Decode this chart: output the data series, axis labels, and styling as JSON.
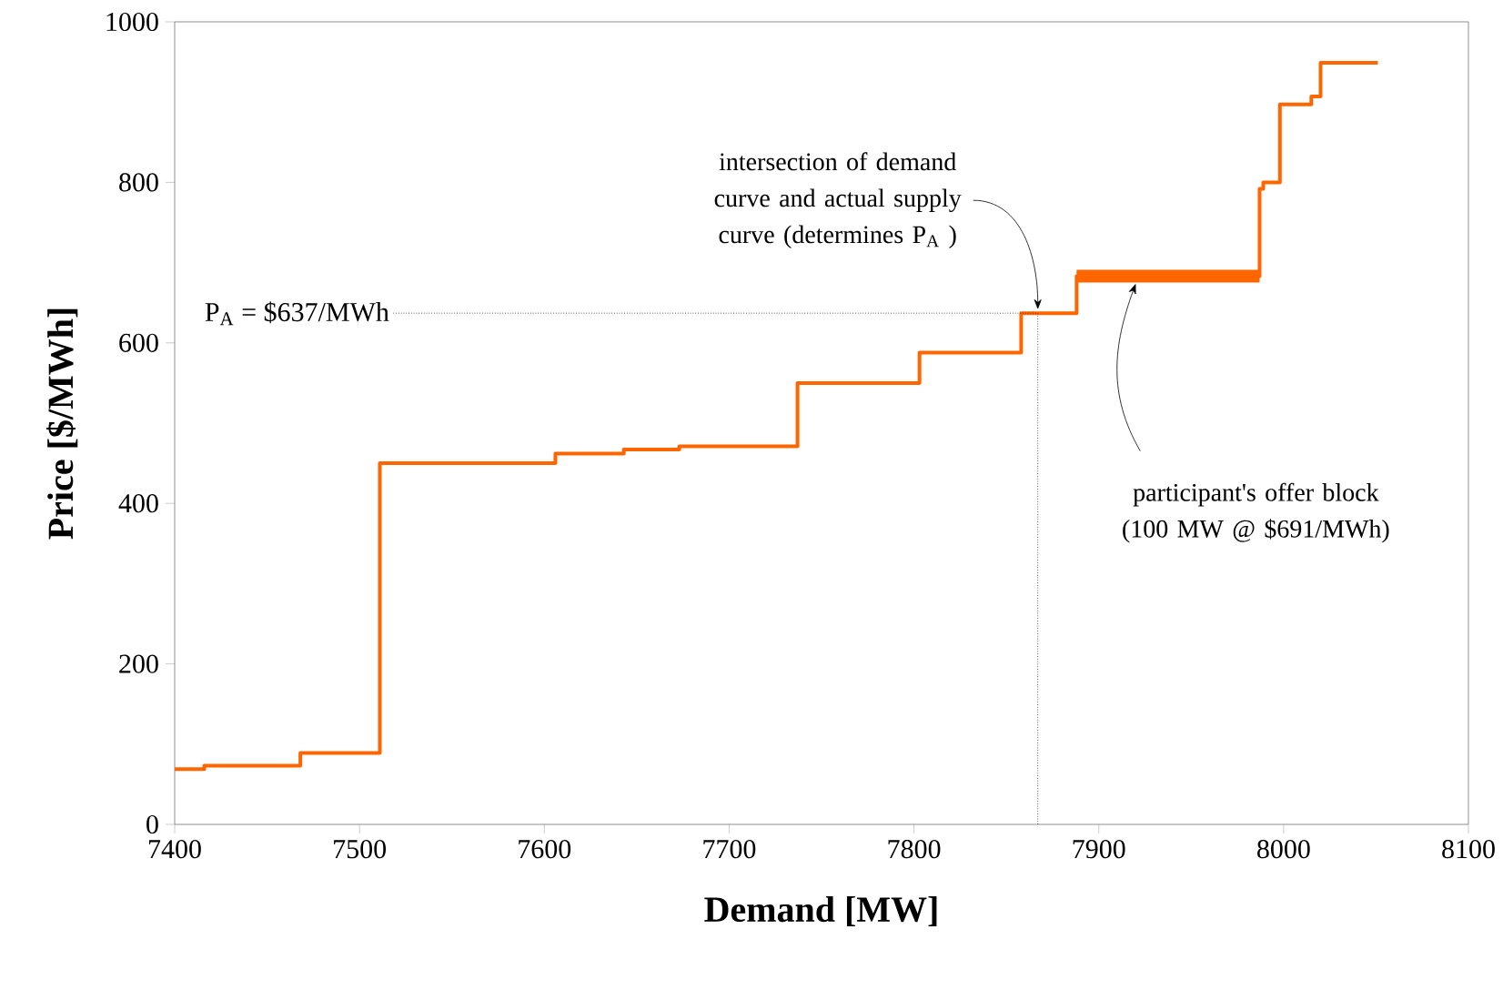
{
  "chart_data": {
    "type": "step",
    "xlabel": "Demand [MW]",
    "ylabel": "Price [$/MWh]",
    "series": [
      {
        "color": "#ff6600",
        "x": [
          7400,
          7416,
          7468,
          7511,
          7606,
          7643,
          7673,
          7737,
          7803,
          7858,
          7888,
          7987,
          7989,
          7998,
          8015,
          8020,
          8051
        ],
        "values": [
          69,
          73,
          89,
          450,
          462,
          467,
          471,
          550,
          588,
          637,
          683,
          792,
          800,
          897,
          907,
          949,
          949
        ]
      },
      {
        "type": "line",
        "color": "#ff6600",
        "x": [
          7888,
          7987
        ],
        "values": [
          683,
          683
        ]
      }
    ],
    "xlim": [
      7400,
      8100
    ],
    "ylim": [
      0,
      1000
    ],
    "xticks": [
      7400,
      7500,
      7600,
      7700,
      7800,
      7900,
      8000,
      8100
    ],
    "yticks": [
      0,
      200,
      400,
      600,
      800,
      1000
    ],
    "ref_lines": [
      {
        "axis": "y",
        "value": 637,
        "label": "P$_{A}$ = $637/MWh",
        "line_style": "dotted"
      },
      {
        "axis": "x",
        "value": 7867,
        "line_style": "dotted"
      }
    ],
    "annotations": [
      {
        "text": "intersection of demand curve and actual supply curve (determines P$_{A}$ )",
        "x": 7867,
        "y": 637
      },
      {
        "text": "participant's offer block (100 MW @ $691/MWh)",
        "x": 7920,
        "y": 683
      }
    ]
  }
}
